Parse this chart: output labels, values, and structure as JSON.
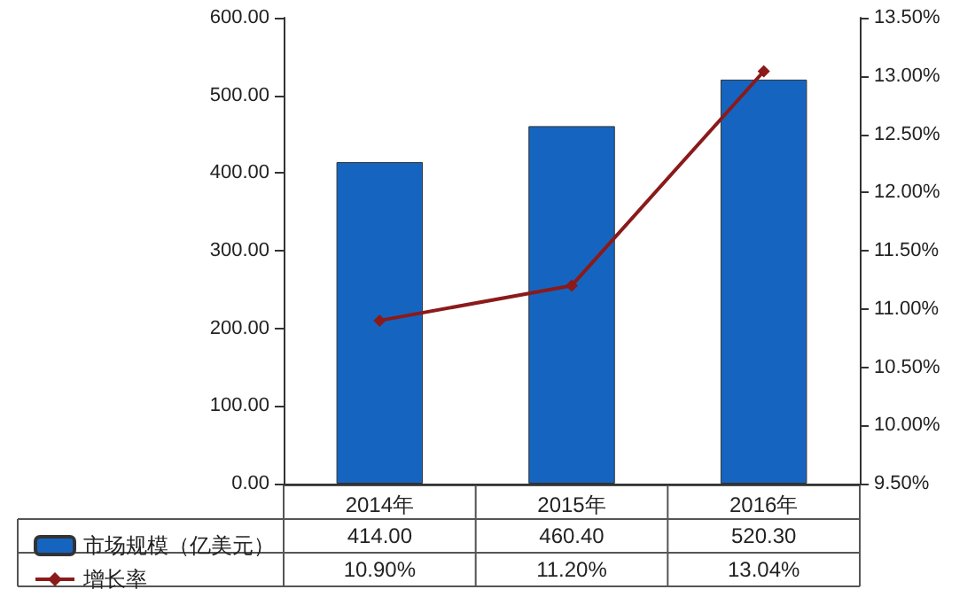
{
  "chart_data": {
    "type": "bar",
    "categories": [
      "2014年",
      "2015年",
      "2016年"
    ],
    "series": [
      {
        "name": "市场规模（亿美元）",
        "color": "#1565c0",
        "values": [
          414.0,
          460.4,
          520.3
        ],
        "value_labels": [
          "414.00",
          "460.40",
          "520.30"
        ]
      },
      {
        "name": "增长率",
        "type": "line",
        "axis": "y2",
        "color": "#8b1a1a",
        "marker": "diamond",
        "values": [
          10.9,
          11.2,
          13.04
        ],
        "value_labels": [
          "10.90%",
          "11.20%",
          "13.04%"
        ]
      }
    ],
    "ylim": [
      0,
      600
    ],
    "yticks": [
      {
        "value": 0,
        "label": "0.00"
      },
      {
        "value": 100,
        "label": "100.00"
      },
      {
        "value": 200,
        "label": "200.00"
      },
      {
        "value": 300,
        "label": "300.00"
      },
      {
        "value": 400,
        "label": "400.00"
      },
      {
        "value": 500,
        "label": "500.00"
      },
      {
        "value": 600,
        "label": "600.00"
      }
    ],
    "y2lim": [
      9.5,
      13.5
    ],
    "y2ticks": [
      {
        "value": 9.5,
        "label": "9.50%"
      },
      {
        "value": 10,
        "label": "10.00%"
      },
      {
        "value": 10.5,
        "label": "10.50%"
      },
      {
        "value": 11,
        "label": "11.00%"
      },
      {
        "value": 11.5,
        "label": "11.50%"
      },
      {
        "value": 12,
        "label": "12.00%"
      },
      {
        "value": 12.5,
        "label": "12.50%"
      },
      {
        "value": 13,
        "label": "13.00%"
      },
      {
        "value": 13.5,
        "label": "13.50%"
      }
    ],
    "grid": false,
    "legend": "bottom left"
  }
}
